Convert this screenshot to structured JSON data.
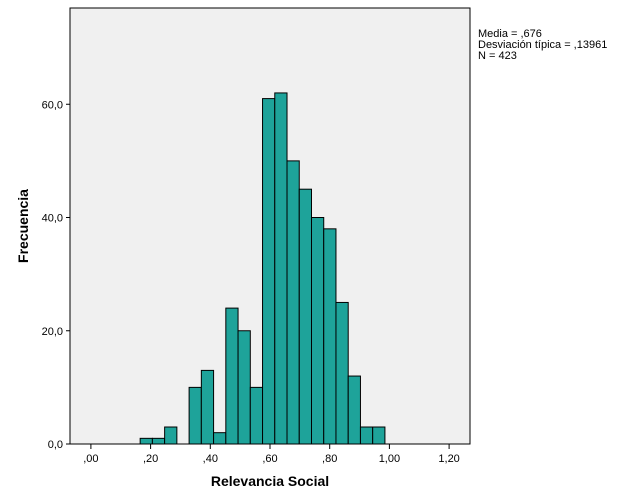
{
  "chart_data": {
    "type": "bar",
    "subtype": "histogram",
    "xlabel": "Relevancia Social",
    "ylabel": "Frecuencia",
    "xlim": [
      -0.07,
      1.27
    ],
    "ylim": [
      0,
      77
    ],
    "x_ticks": [
      {
        "value": 0.0,
        "label": ",00"
      },
      {
        "value": 0.2,
        "label": ",20"
      },
      {
        "value": 0.4,
        "label": ",40"
      },
      {
        "value": 0.6,
        "label": ",60"
      },
      {
        "value": 0.8,
        "label": ",80"
      },
      {
        "value": 1.0,
        "label": "1,00"
      },
      {
        "value": 1.2,
        "label": "1,20"
      }
    ],
    "y_ticks": [
      {
        "value": 0,
        "label": "0,0"
      },
      {
        "value": 20,
        "label": "20,0"
      },
      {
        "value": 40,
        "label": "40,0"
      },
      {
        "value": 60,
        "label": "60,0"
      }
    ],
    "bin_width": 0.041,
    "bins": [
      {
        "start": 0.165,
        "count": 1
      },
      {
        "start": 0.206,
        "count": 1
      },
      {
        "start": 0.247,
        "count": 3
      },
      {
        "start": 0.329,
        "count": 10
      },
      {
        "start": 0.37,
        "count": 13
      },
      {
        "start": 0.411,
        "count": 2
      },
      {
        "start": 0.452,
        "count": 24
      },
      {
        "start": 0.493,
        "count": 20
      },
      {
        "start": 0.534,
        "count": 10
      },
      {
        "start": 0.575,
        "count": 61
      },
      {
        "start": 0.616,
        "count": 62
      },
      {
        "start": 0.657,
        "count": 50
      },
      {
        "start": 0.698,
        "count": 45
      },
      {
        "start": 0.739,
        "count": 40
      },
      {
        "start": 0.78,
        "count": 38
      },
      {
        "start": 0.821,
        "count": 25
      },
      {
        "start": 0.862,
        "count": 12
      },
      {
        "start": 0.903,
        "count": 3
      },
      {
        "start": 0.944,
        "count": 3
      }
    ],
    "stats": [
      "Media = ,676",
      "Desviación típica = ,13961",
      "N = 423"
    ],
    "grid": false,
    "colors": {
      "bar_fill": "#1ea39a",
      "bar_stroke": "#000000",
      "plot_background": "#f0f0f0",
      "axis": "#000000"
    }
  }
}
